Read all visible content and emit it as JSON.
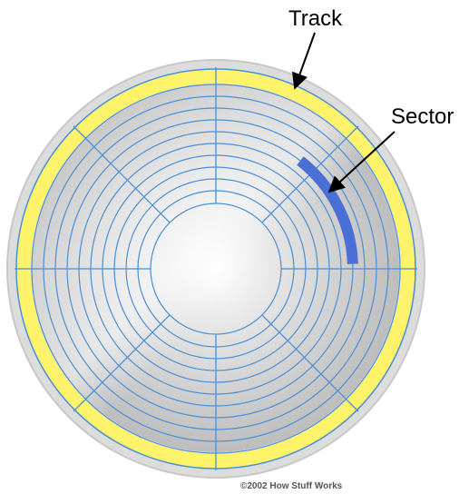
{
  "labels": {
    "track": "Track",
    "sector": "Sector"
  },
  "credit": "©2002 How Stuff Works",
  "colors": {
    "platter_outer": "#d9d9d9",
    "track_highlight": "#fff36b",
    "sector_highlight": "#4a6fd6",
    "grid_lines": "#4a8fd6",
    "arrow": "#000000"
  }
}
